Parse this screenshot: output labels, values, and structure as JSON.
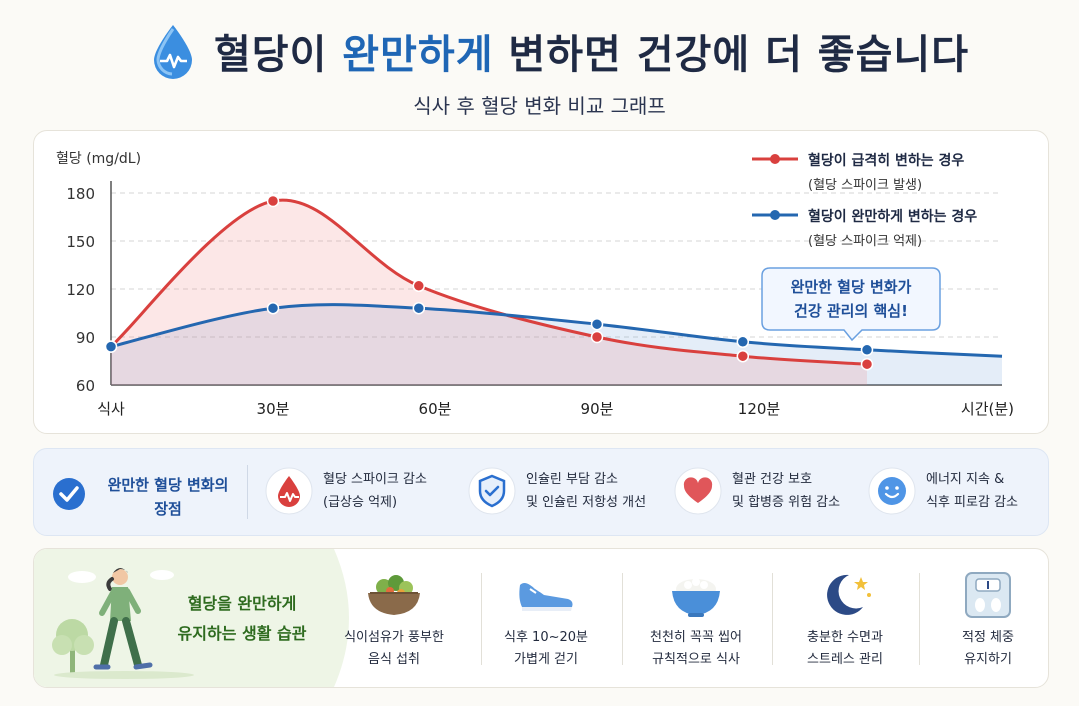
{
  "header": {
    "title_part1": "혈당이 ",
    "title_highlight": "완만하게",
    "title_part2": " 변하면 건강에 더 좋습니다",
    "subtitle": "식사 후 혈당 변화 비교 그래프"
  },
  "chart_data": {
    "type": "line",
    "ylabel": "혈당 (mg/dL)",
    "xlabel": "시간(분)",
    "x_tick_labels": [
      "식사",
      "30분",
      "60분",
      "90분",
      "120분",
      "시간(분)"
    ],
    "x_ticks": [
      0,
      30,
      60,
      90,
      120,
      165
    ],
    "yticks": [
      60,
      90,
      120,
      150,
      180
    ],
    "xlim": [
      0,
      165
    ],
    "ylim": [
      60,
      180
    ],
    "grid": true,
    "legend_position": "top-right",
    "series": [
      {
        "name": "혈당이 급격히 변하는 경우",
        "note": "(혈당 스파이크 발생)",
        "color": "#d9403e",
        "area": true,
        "x": [
          0,
          30,
          57,
          90,
          117,
          140
        ],
        "y": [
          84,
          175,
          122,
          90,
          78,
          73
        ],
        "markers_x": [
          0,
          30,
          57,
          90,
          117,
          140
        ],
        "markers_y": [
          84,
          175,
          122,
          90,
          78,
          73
        ]
      },
      {
        "name": "혈당이 완만하게 변하는 경우",
        "note": "(혈당 스파이크 억제)",
        "color": "#2467b0",
        "area": true,
        "x": [
          0,
          30,
          57,
          90,
          117,
          140,
          165
        ],
        "y": [
          84,
          108,
          108,
          98,
          87,
          82,
          78
        ],
        "markers_x": [
          0,
          30,
          57,
          90,
          117,
          140
        ],
        "markers_y": [
          84,
          108,
          108,
          98,
          87,
          82
        ]
      }
    ],
    "annotation": "완만한 혈당 변화가\n건강 관리의 핵심!"
  },
  "benefits": {
    "title": "완만한 혈당 변화의\n장점",
    "items": [
      {
        "icon": "blood-drop-pulse-icon",
        "line1": "혈당 스파이크 감소",
        "line2": "(급상승 억제)"
      },
      {
        "icon": "shield-check-icon",
        "line1": "인슐린 부담 감소",
        "line2": "및 인슐린 저항성 개선"
      },
      {
        "icon": "heart-icon",
        "line1": "혈관 건강 보호",
        "line2": "및 합병증 위험 감소"
      },
      {
        "icon": "smile-icon",
        "line1": "에너지 지속 &",
        "line2": "식후 피로감 감소"
      }
    ]
  },
  "habits": {
    "title": "혈당을 완만하게\n유지하는 생활 습관",
    "items": [
      {
        "icon": "salad-bowl-icon",
        "line1": "식이섬유가 풍부한",
        "line2": "음식 섭취"
      },
      {
        "icon": "sneaker-icon",
        "line1": "식후 10~20분",
        "line2": "가볍게 걷기"
      },
      {
        "icon": "rice-bowl-icon",
        "line1": "천천히 꼭꼭 씹어",
        "line2": "규칙적으로 식사"
      },
      {
        "icon": "moon-stars-icon",
        "line1": "충분한 수면과",
        "line2": "스트레스 관리"
      },
      {
        "icon": "scale-icon",
        "line1": "적정 체중",
        "line2": "유지하기"
      }
    ]
  },
  "colors": {
    "accent_blue": "#1f66b5",
    "spike_red": "#d9403e",
    "gentle_blue": "#2467b0",
    "habit_green": "#2e6b1f"
  }
}
